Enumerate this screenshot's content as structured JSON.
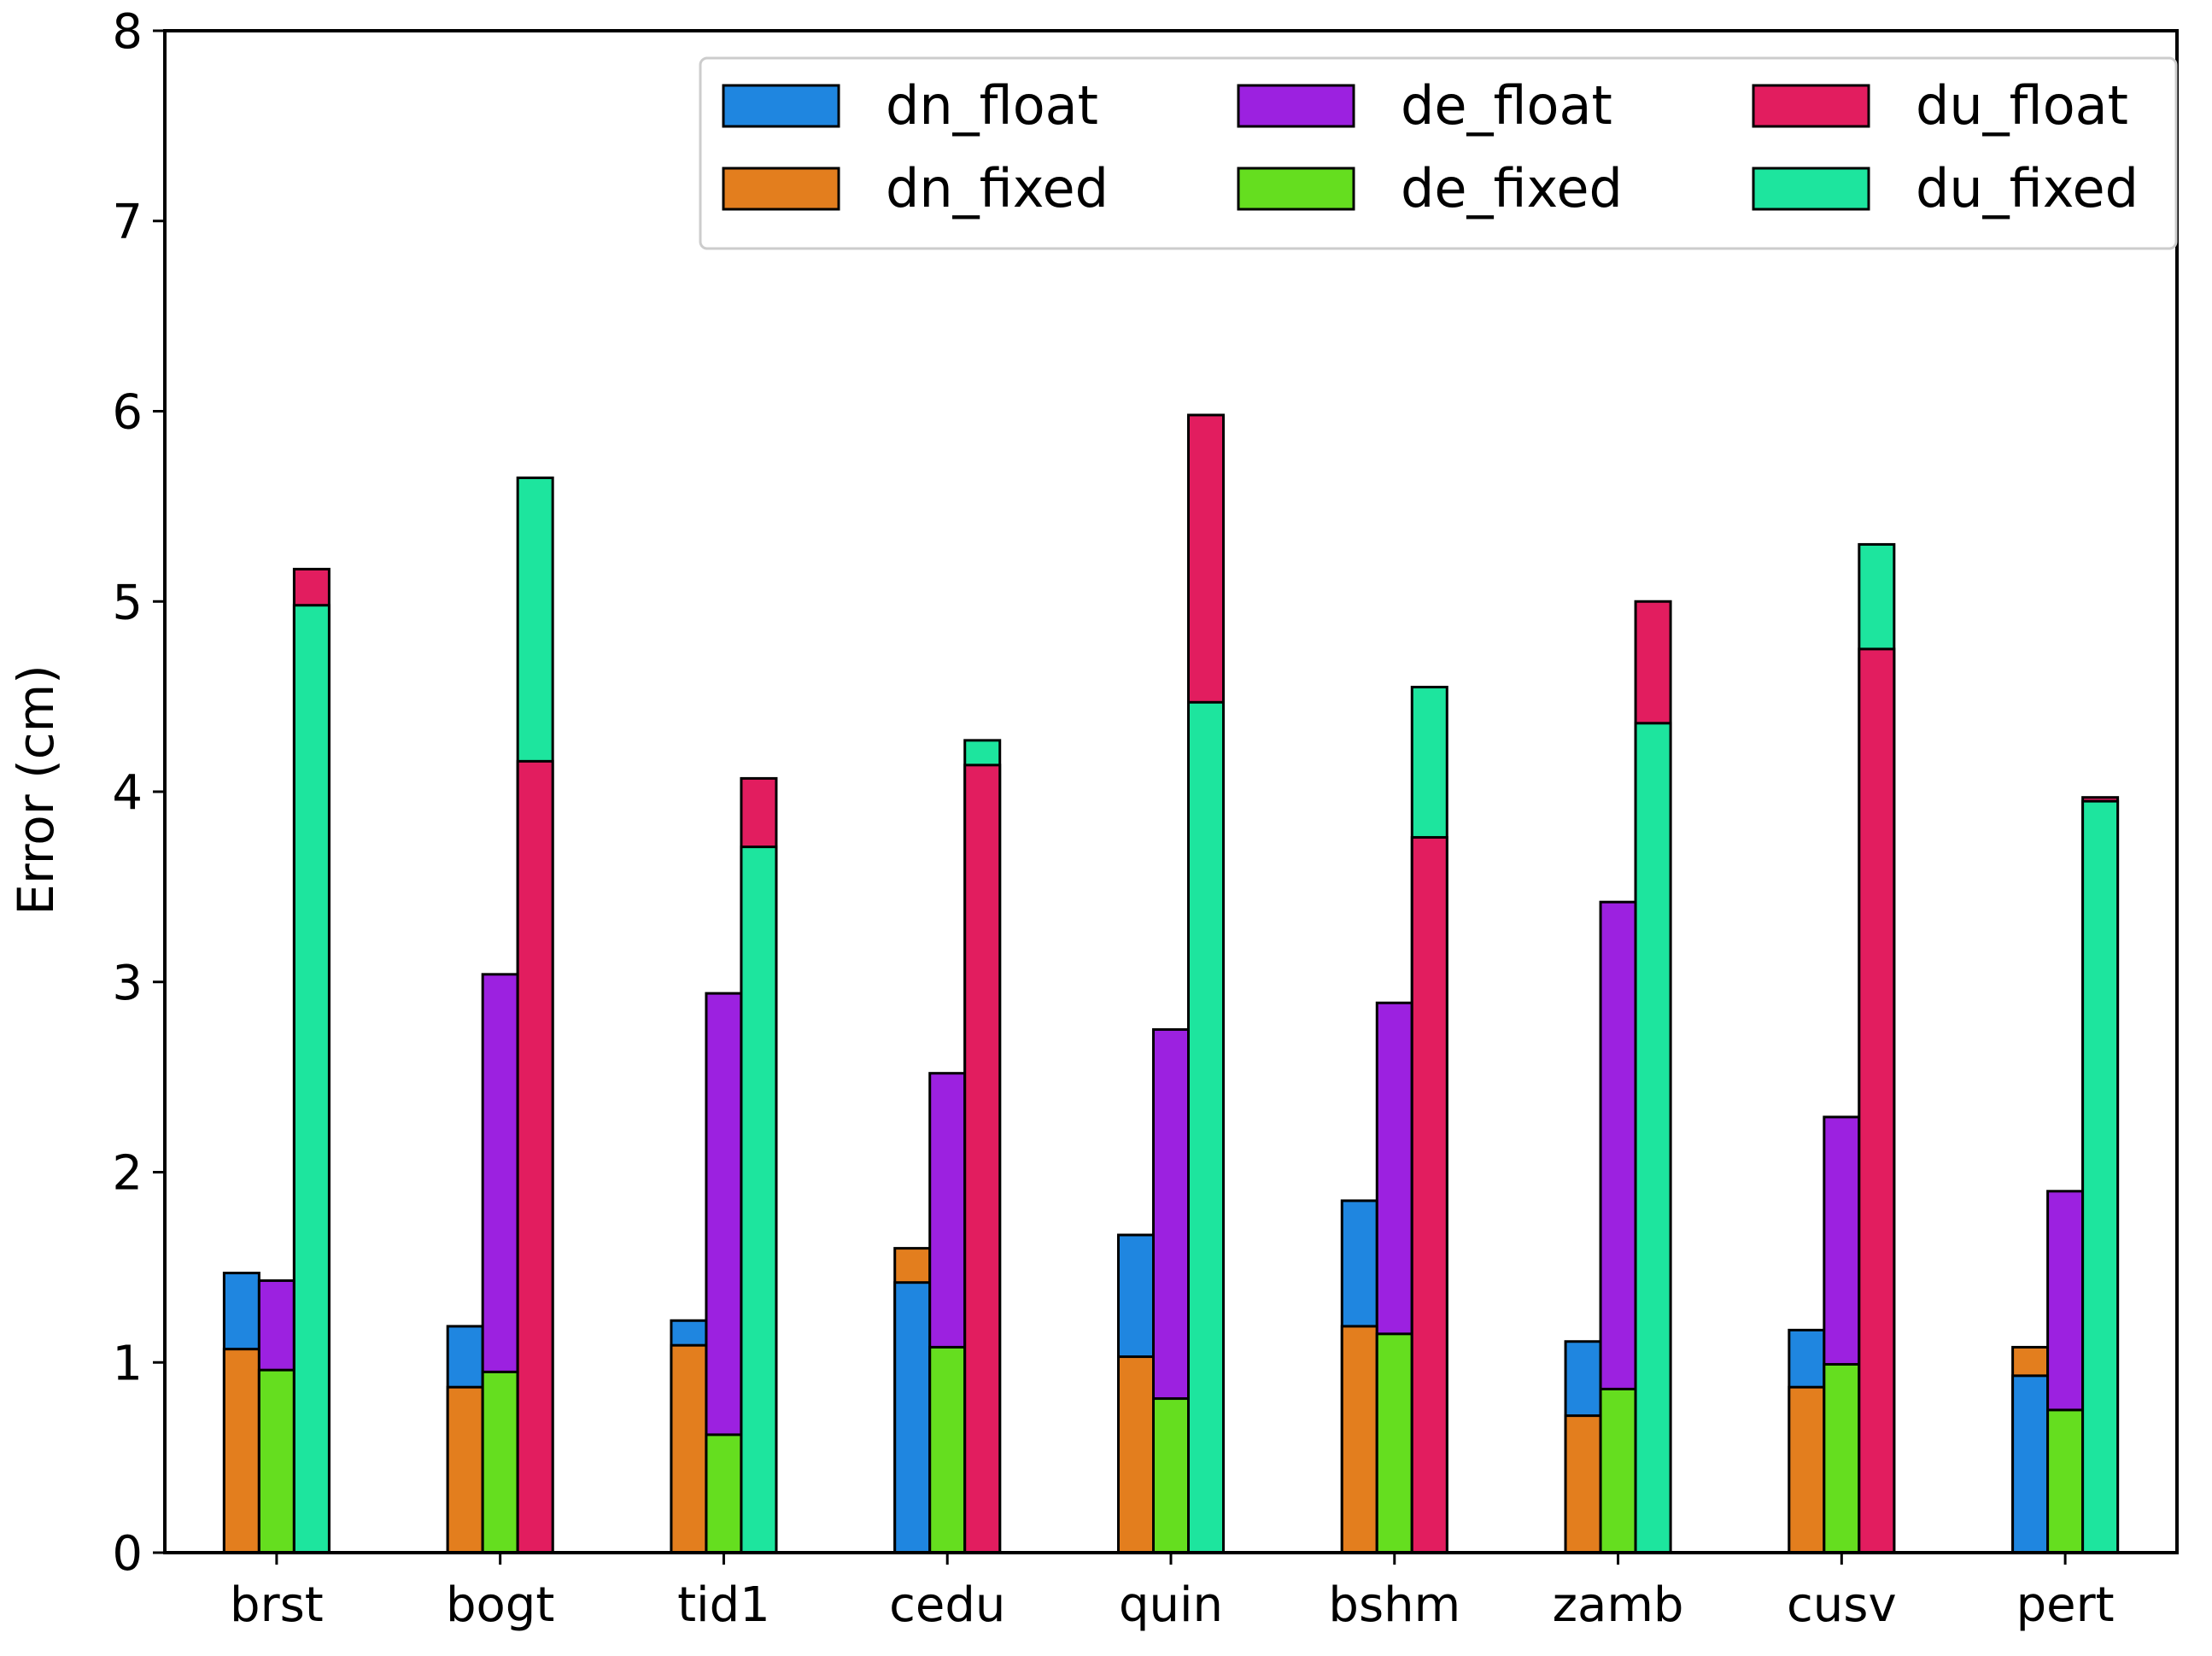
{
  "chart_data": {
    "type": "bar",
    "subtype": "overlapped-stacked",
    "title": "",
    "xlabel": "",
    "ylabel": "Error (cm)",
    "ylim": [
      0,
      8
    ],
    "yticks": [
      0,
      1,
      2,
      3,
      4,
      5,
      6,
      7,
      8
    ],
    "categories": [
      "brst",
      "bogt",
      "tid1",
      "cedu",
      "quin",
      "bshm",
      "zamb",
      "cusv",
      "pert"
    ],
    "groups": [
      {
        "name": "dn",
        "series": [
          "dn_float",
          "dn_fixed"
        ]
      },
      {
        "name": "de",
        "series": [
          "de_float",
          "de_fixed"
        ]
      },
      {
        "name": "du",
        "series": [
          "du_float",
          "du_fixed"
        ]
      }
    ],
    "series": [
      {
        "name": "dn_float",
        "color": "#1f86e0",
        "values": [
          1.47,
          1.19,
          1.22,
          1.42,
          1.67,
          1.85,
          1.11,
          1.17,
          0.93
        ]
      },
      {
        "name": "dn_fixed",
        "color": "#e37e1e",
        "values": [
          1.07,
          0.87,
          1.09,
          1.6,
          1.03,
          1.19,
          0.72,
          0.87,
          1.08
        ]
      },
      {
        "name": "de_float",
        "color": "#9c21e0",
        "values": [
          1.43,
          3.04,
          2.94,
          2.52,
          2.75,
          2.89,
          3.42,
          2.29,
          1.9
        ]
      },
      {
        "name": "de_fixed",
        "color": "#65de1f",
        "values": [
          0.96,
          0.95,
          0.62,
          1.08,
          0.81,
          1.15,
          0.86,
          0.99,
          0.75
        ]
      },
      {
        "name": "du_float",
        "color": "#e21d5f",
        "values": [
          5.17,
          4.16,
          4.07,
          4.14,
          5.98,
          3.76,
          5.0,
          4.75,
          3.97
        ]
      },
      {
        "name": "du_fixed",
        "color": "#1de59e",
        "values": [
          4.98,
          5.65,
          3.71,
          4.27,
          4.47,
          4.55,
          4.36,
          5.3,
          3.95
        ]
      }
    ],
    "legend": {
      "placement": "top-right",
      "columns": 3,
      "entries": [
        "dn_float",
        "dn_fixed",
        "de_float",
        "de_fixed",
        "du_float",
        "du_fixed"
      ]
    },
    "grid": false
  }
}
